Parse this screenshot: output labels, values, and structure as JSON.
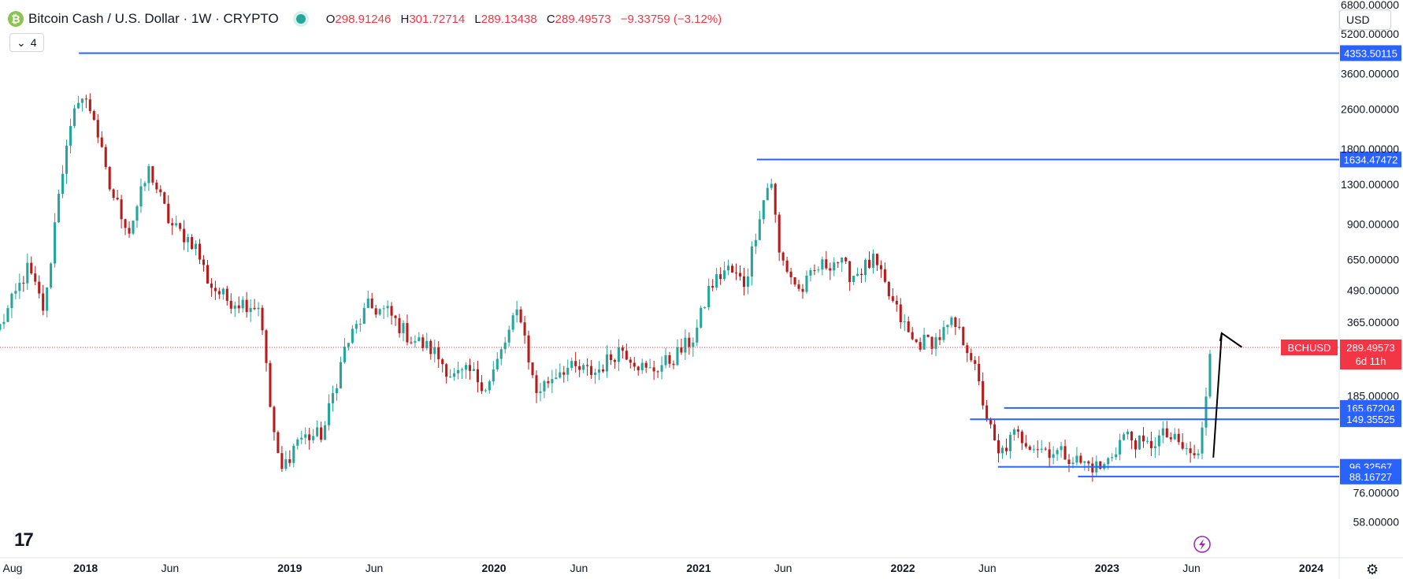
{
  "header": {
    "coin_glyph": "₿",
    "title": "Bitcoin Cash / U.S. Dollar · 1W · CRYPTO",
    "o_label": "O",
    "o_value": "298.91246",
    "h_label": "H",
    "h_value": "301.72714",
    "l_label": "L",
    "l_value": "289.13438",
    "c_label": "C",
    "c_value": "289.49573",
    "change": "−9.33759 (−3.12%)",
    "indicators_count": "4",
    "indicators_chevron": "⌄",
    "currency": "USD"
  },
  "footer": {
    "logo_text": "17",
    "gear_glyph": "⚙"
  },
  "colors": {
    "up": "#26a69a",
    "down": "#b71c1c",
    "level": "#2962ff",
    "price_label": "#f23645",
    "arrow": "#000000",
    "lightning": "#9c27b0"
  },
  "chart_data": {
    "type": "candlestick",
    "symbol": "BCHUSD",
    "interval": "1W",
    "y_scale": "log",
    "ylim": [
      50,
      6800
    ],
    "y_ticks": [
      "6800.00000",
      "5200.00000",
      "3600.00000",
      "2600.00000",
      "1800.00000",
      "1300.00000",
      "900.00000",
      "650.00000",
      "490.00000",
      "365.00000",
      "185.00000",
      "76.00000",
      "58.00000"
    ],
    "x_ticks": [
      "Aug",
      "2018",
      "Jun",
      "2019",
      "Jun",
      "2020",
      "Jun",
      "2021",
      "Jun",
      "2022",
      "Jun",
      "2023",
      "Jun",
      "2024"
    ],
    "last_price": {
      "label": "BCHUSD",
      "value": "289.49573",
      "countdown": "6d 11h",
      "price": 289.49573
    },
    "horizontal_levels": [
      {
        "price": 4353.50115,
        "label": "4353.50115",
        "from": "2017-12-20"
      },
      {
        "price": 1634.47472,
        "label": "1634.47472",
        "from": "2021-04-15"
      },
      {
        "price": 165.67204,
        "label": "165.67204",
        "from": "2022-07-01"
      },
      {
        "price": 149.35525,
        "label": "149.35525",
        "from": "2022-05-01"
      },
      {
        "price": 96.32567,
        "label": "96.32567",
        "from": "2022-06-20"
      },
      {
        "price": 88.16727,
        "label": "88.16727",
        "from": "2022-11-10"
      }
    ],
    "projection_arrow": [
      {
        "date": "2023-07-10",
        "price": 105
      },
      {
        "date": "2023-07-25",
        "price": 330
      },
      {
        "date": "2023-08-30",
        "price": 290
      }
    ],
    "anchors": [
      {
        "date": "2017-08-01",
        "price": 350
      },
      {
        "date": "2017-09-20",
        "price": 600
      },
      {
        "date": "2017-10-20",
        "price": 400
      },
      {
        "date": "2017-11-15",
        "price": 1300
      },
      {
        "date": "2017-12-20",
        "price": 3000
      },
      {
        "date": "2018-01-15",
        "price": 2500
      },
      {
        "date": "2018-02-10",
        "price": 1300
      },
      {
        "date": "2018-03-20",
        "price": 850
      },
      {
        "date": "2018-04-25",
        "price": 1500
      },
      {
        "date": "2018-06-01",
        "price": 900
      },
      {
        "date": "2018-07-15",
        "price": 750
      },
      {
        "date": "2018-08-10",
        "price": 520
      },
      {
        "date": "2018-09-10",
        "price": 450
      },
      {
        "date": "2018-10-25",
        "price": 430
      },
      {
        "date": "2018-11-10",
        "price": 420
      },
      {
        "date": "2018-11-25",
        "price": 180
      },
      {
        "date": "2018-12-15",
        "price": 90
      },
      {
        "date": "2019-01-15",
        "price": 125
      },
      {
        "date": "2019-03-01",
        "price": 130
      },
      {
        "date": "2019-04-10",
        "price": 290
      },
      {
        "date": "2019-05-20",
        "price": 420
      },
      {
        "date": "2019-06-25",
        "price": 400
      },
      {
        "date": "2019-08-01",
        "price": 320
      },
      {
        "date": "2019-09-15",
        "price": 280
      },
      {
        "date": "2019-10-20",
        "price": 220
      },
      {
        "date": "2019-11-20",
        "price": 230
      },
      {
        "date": "2019-12-20",
        "price": 200
      },
      {
        "date": "2020-02-15",
        "price": 420
      },
      {
        "date": "2020-03-15",
        "price": 190
      },
      {
        "date": "2020-05-01",
        "price": 240
      },
      {
        "date": "2020-07-01",
        "price": 230
      },
      {
        "date": "2020-08-15",
        "price": 290
      },
      {
        "date": "2020-10-01",
        "price": 230
      },
      {
        "date": "2020-11-15",
        "price": 260
      },
      {
        "date": "2020-12-25",
        "price": 320
      },
      {
        "date": "2021-01-20",
        "price": 500
      },
      {
        "date": "2021-02-20",
        "price": 600
      },
      {
        "date": "2021-03-25",
        "price": 520
      },
      {
        "date": "2021-04-20",
        "price": 1000
      },
      {
        "date": "2021-05-10",
        "price": 1400
      },
      {
        "date": "2021-05-25",
        "price": 680
      },
      {
        "date": "2021-07-01",
        "price": 480
      },
      {
        "date": "2021-08-01",
        "price": 600
      },
      {
        "date": "2021-09-05",
        "price": 650
      },
      {
        "date": "2021-10-01",
        "price": 560
      },
      {
        "date": "2021-11-10",
        "price": 640
      },
      {
        "date": "2021-12-10",
        "price": 450
      },
      {
        "date": "2022-01-20",
        "price": 300
      },
      {
        "date": "2022-03-01",
        "price": 310
      },
      {
        "date": "2022-04-01",
        "price": 360
      },
      {
        "date": "2022-05-01",
        "price": 280
      },
      {
        "date": "2022-05-20",
        "price": 190
      },
      {
        "date": "2022-06-20",
        "price": 105
      },
      {
        "date": "2022-07-20",
        "price": 130
      },
      {
        "date": "2022-09-01",
        "price": 115
      },
      {
        "date": "2022-10-20",
        "price": 108
      },
      {
        "date": "2022-11-15",
        "price": 100
      },
      {
        "date": "2022-12-25",
        "price": 95
      },
      {
        "date": "2023-02-01",
        "price": 130
      },
      {
        "date": "2023-03-10",
        "price": 115
      },
      {
        "date": "2023-04-15",
        "price": 130
      },
      {
        "date": "2023-05-25",
        "price": 110
      },
      {
        "date": "2023-06-15",
        "price": 105
      },
      {
        "date": "2023-06-25",
        "price": 170
      },
      {
        "date": "2023-07-05",
        "price": 300
      }
    ]
  }
}
